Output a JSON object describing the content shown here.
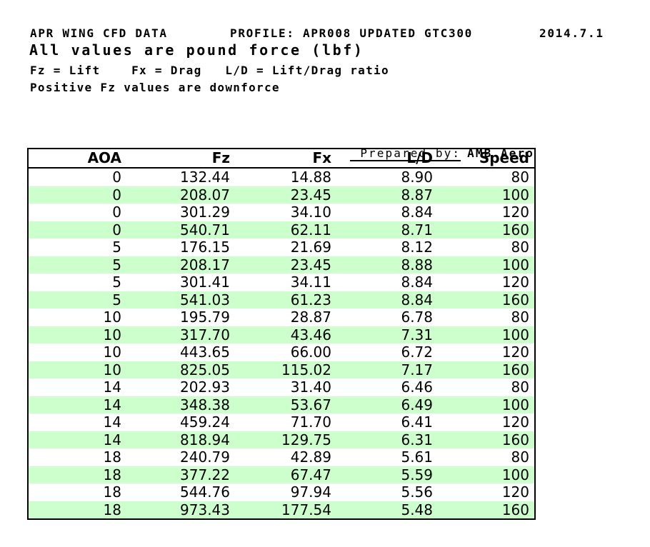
{
  "header": {
    "title": "APR WING CFD DATA",
    "profile": "PROFILE: APR008 UPDATED GTC300",
    "date": "2014.7.1",
    "subtitle": "All values are pound force (lbf)",
    "legend": "Fz = Lift    Fx = Drag   L/D = Lift/Drag ratio",
    "note": "Positive Fz values are downforce"
  },
  "prepared_by": {
    "label": "Prepared by:",
    "value": "AMB Aero"
  },
  "colors": {
    "row_alternate": "#ccffcc",
    "table_border": "#000000",
    "text": "#000000",
    "background": "#ffffff"
  },
  "table": {
    "headers": [
      "AOA",
      "Fz",
      "Fx",
      "L/D",
      "Speed"
    ],
    "column_keys": [
      "aoa",
      "fz",
      "fx",
      "ld",
      "speed"
    ],
    "rows": [
      [
        "0",
        "132.44",
        "14.88",
        "8.90",
        "80"
      ],
      [
        "0",
        "208.07",
        "23.45",
        "8.87",
        "100"
      ],
      [
        "0",
        "301.29",
        "34.10",
        "8.84",
        "120"
      ],
      [
        "0",
        "540.71",
        "62.11",
        "8.71",
        "160"
      ],
      [
        "5",
        "176.15",
        "21.69",
        "8.12",
        "80"
      ],
      [
        "5",
        "208.17",
        "23.45",
        "8.88",
        "100"
      ],
      [
        "5",
        "301.41",
        "34.11",
        "8.84",
        "120"
      ],
      [
        "5",
        "541.03",
        "61.23",
        "8.84",
        "160"
      ],
      [
        "10",
        "195.79",
        "28.87",
        "6.78",
        "80"
      ],
      [
        "10",
        "317.70",
        "43.46",
        "7.31",
        "100"
      ],
      [
        "10",
        "443.65",
        "66.00",
        "6.72",
        "120"
      ],
      [
        "10",
        "825.05",
        "115.02",
        "7.17",
        "160"
      ],
      [
        "14",
        "202.93",
        "31.40",
        "6.46",
        "80"
      ],
      [
        "14",
        "348.38",
        "53.67",
        "6.49",
        "100"
      ],
      [
        "14",
        "459.24",
        "71.70",
        "6.41",
        "120"
      ],
      [
        "14",
        "818.94",
        "129.75",
        "6.31",
        "160"
      ],
      [
        "18",
        "240.79",
        "42.89",
        "5.61",
        "80"
      ],
      [
        "18",
        "377.22",
        "67.47",
        "5.59",
        "100"
      ],
      [
        "18",
        "544.76",
        "97.94",
        "5.56",
        "120"
      ],
      [
        "18",
        "973.43",
        "177.54",
        "5.48",
        "160"
      ]
    ]
  }
}
